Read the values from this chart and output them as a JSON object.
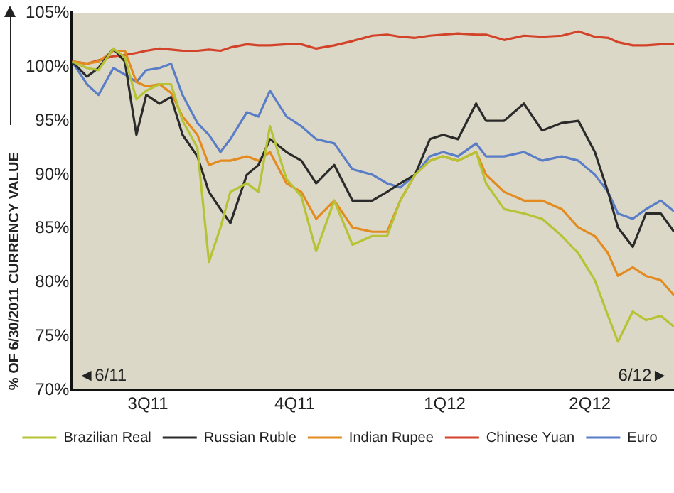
{
  "chart_data": {
    "type": "line",
    "ylabel": "% OF 6/30/2011 CURRENCY VALUE",
    "x": [
      "2011-06-30",
      "2011-07-09",
      "2011-07-16",
      "2011-07-25",
      "2011-08-01",
      "2011-08-08",
      "2011-08-14",
      "2011-08-22",
      "2011-08-29",
      "2011-09-05",
      "2011-09-14",
      "2011-09-21",
      "2011-09-28",
      "2011-10-04",
      "2011-10-14",
      "2011-10-21",
      "2011-10-28",
      "2011-11-07",
      "2011-11-16",
      "2011-11-25",
      "2011-12-06",
      "2011-12-17",
      "2011-12-29",
      "2012-01-07",
      "2012-01-15",
      "2012-01-24",
      "2012-02-02",
      "2012-02-10",
      "2012-02-19",
      "2012-03-01",
      "2012-03-07",
      "2012-03-18",
      "2012-03-30",
      "2012-04-10",
      "2012-04-22",
      "2012-05-02",
      "2012-05-12",
      "2012-05-20",
      "2012-05-26",
      "2012-06-04",
      "2012-06-12",
      "2012-06-21",
      "2012-06-29"
    ],
    "series": [
      {
        "name": "Brazilian Real",
        "color": "#b5c334",
        "values": [
          100.5,
          99.9,
          99.7,
          101.7,
          100.9,
          97.0,
          97.8,
          98.4,
          98.4,
          95.0,
          92.5,
          81.9,
          85.1,
          88.4,
          89.2,
          88.4,
          94.5,
          89.6,
          88.0,
          82.9,
          87.6,
          83.5,
          84.3,
          84.3,
          87.6,
          90.0,
          91.3,
          91.7,
          91.3,
          92.1,
          89.2,
          86.8,
          86.4,
          85.9,
          84.3,
          82.7,
          80.2,
          76.9,
          74.5,
          77.3,
          76.5,
          76.9,
          75.9
        ]
      },
      {
        "name": "Russian Ruble",
        "color": "#2b2b2b",
        "values": [
          100.5,
          99.1,
          99.9,
          101.7,
          100.5,
          93.7,
          97.4,
          96.6,
          97.2,
          93.7,
          91.7,
          88.4,
          86.8,
          85.5,
          90.0,
          90.9,
          93.3,
          92.1,
          91.3,
          89.2,
          90.9,
          87.6,
          87.6,
          88.4,
          89.2,
          90.0,
          93.3,
          93.7,
          93.3,
          96.6,
          95.0,
          95.0,
          96.6,
          94.1,
          94.8,
          95.0,
          92.1,
          88.4,
          85.1,
          83.3,
          86.4,
          86.4,
          84.7
        ]
      },
      {
        "name": "Indian Rupee",
        "color": "#e38b1e",
        "values": [
          100.5,
          100.3,
          100.5,
          101.5,
          101.5,
          98.6,
          98.2,
          98.4,
          97.6,
          95.4,
          93.7,
          90.9,
          91.3,
          91.3,
          91.7,
          91.3,
          92.1,
          89.2,
          88.4,
          85.9,
          87.6,
          85.1,
          84.7,
          84.7,
          87.6,
          90.0,
          91.3,
          91.7,
          91.3,
          92.1,
          90.0,
          88.4,
          87.6,
          87.6,
          86.8,
          85.1,
          84.3,
          82.7,
          80.6,
          81.4,
          80.6,
          80.2,
          78.8
        ]
      },
      {
        "name": "Chinese Yuan",
        "color": "#d2432a",
        "values": [
          100.5,
          100.3,
          100.6,
          101.0,
          101.1,
          101.3,
          101.5,
          101.7,
          101.6,
          101.5,
          101.5,
          101.6,
          101.5,
          101.8,
          102.1,
          102.0,
          102.0,
          102.1,
          102.1,
          101.7,
          102.0,
          102.4,
          102.9,
          103.0,
          102.8,
          102.7,
          102.9,
          103.0,
          103.1,
          103.0,
          103.0,
          102.5,
          102.9,
          102.8,
          102.9,
          103.3,
          102.8,
          102.7,
          102.3,
          102.0,
          102.0,
          102.1,
          102.1
        ]
      },
      {
        "name": "Euro",
        "color": "#5a7dc8",
        "values": [
          100.5,
          98.4,
          97.4,
          99.9,
          99.3,
          98.6,
          99.7,
          99.9,
          100.3,
          97.4,
          94.8,
          93.7,
          92.1,
          93.3,
          95.8,
          95.4,
          97.8,
          95.4,
          94.5,
          93.3,
          92.9,
          90.5,
          90.0,
          89.2,
          88.8,
          90.0,
          91.7,
          92.1,
          91.7,
          92.9,
          91.7,
          91.7,
          92.1,
          91.3,
          91.7,
          91.3,
          90.0,
          88.4,
          86.4,
          85.9,
          86.8,
          87.6,
          86.6
        ]
      }
    ],
    "xlim": [
      "2011-06-30",
      "2012-06-29"
    ],
    "xticks": [
      {
        "value": "2011-08-15",
        "label": "3Q11"
      },
      {
        "value": "2011-11-12",
        "label": "4Q11"
      },
      {
        "value": "2012-02-11",
        "label": "1Q12"
      },
      {
        "value": "2012-05-09",
        "label": "2Q12"
      }
    ],
    "ylim": [
      70,
      105
    ],
    "yticks": [
      {
        "value": 70,
        "label": "70%"
      },
      {
        "value": 75,
        "label": "75%"
      },
      {
        "value": 80,
        "label": "80%"
      },
      {
        "value": 85,
        "label": "85%"
      },
      {
        "value": 90,
        "label": "90%"
      },
      {
        "value": 95,
        "label": "95%"
      },
      {
        "value": 100,
        "label": "100%"
      },
      {
        "value": 105,
        "label": "105%"
      }
    ],
    "annotations": [
      "◄6/11",
      "6/12►"
    ],
    "grid": false,
    "legend": "bottom",
    "marker": "none",
    "line_style": "solid"
  }
}
